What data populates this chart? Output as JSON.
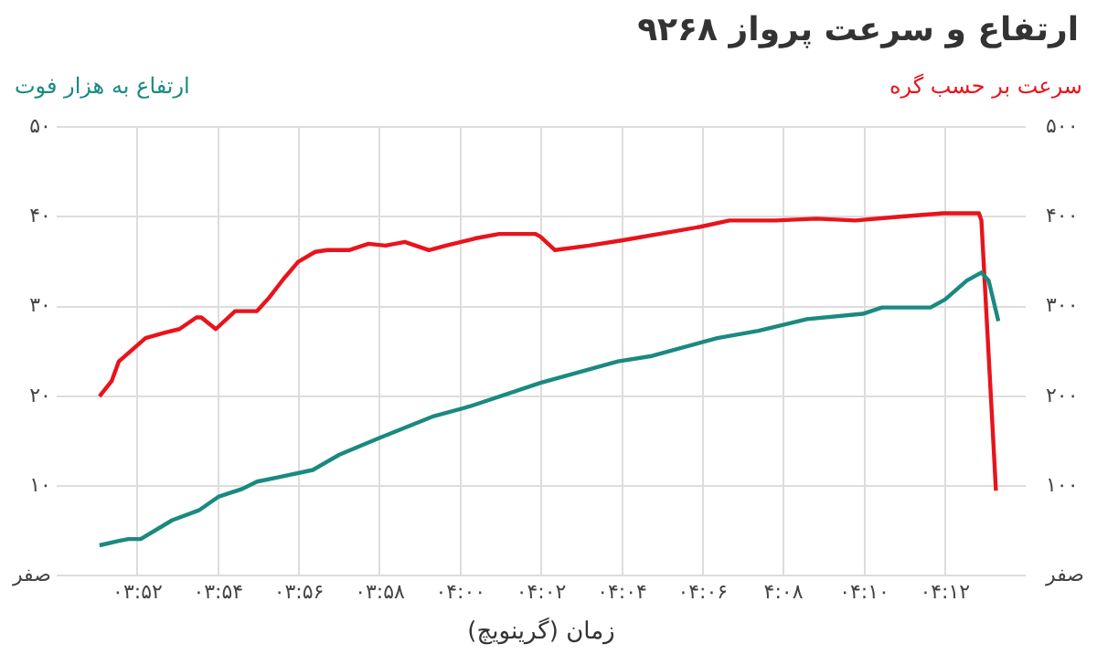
{
  "chart_data": {
    "type": "line",
    "title": "ارتفاع و سرعت پرواز ۹۲۶۸",
    "xlabel": "زمان (گرینویچ)",
    "ylabel": "ارتفاع به هزار فوت",
    "y2label": "سرعت بر حسب گره",
    "xlim": [
      3.8333,
      4.2333
    ],
    "xticks": [
      {
        "value": 3.8667,
        "label": "۰۳:۵۲"
      },
      {
        "value": 3.9,
        "label": "۰۳:۵۴"
      },
      {
        "value": 3.9333,
        "label": "۰۳:۵۶"
      },
      {
        "value": 3.9667,
        "label": "۰۳:۵۸"
      },
      {
        "value": 4,
        "label": "۰۴:۰۰"
      },
      {
        "value": 4.0333,
        "label": "۰۴:۰۲"
      },
      {
        "value": 4.0667,
        "label": "۰۴:۰۴"
      },
      {
        "value": 4.1,
        "label": "۰۴:۰۶"
      },
      {
        "value": 4.1333,
        "label": "۴:۰۸"
      },
      {
        "value": 4.1667,
        "label": "۰۴:۱۰"
      },
      {
        "value": 4.2,
        "label": "۰۴:۱۲"
      }
    ],
    "ylim": [
      0,
      50
    ],
    "yticks": [
      {
        "value": 0,
        "label": "صفر"
      },
      {
        "value": 10,
        "label": "۱۰"
      },
      {
        "value": 20,
        "label": "۲۰"
      },
      {
        "value": 30,
        "label": "۳۰"
      },
      {
        "value": 40,
        "label": "۴۰"
      },
      {
        "value": 50,
        "label": "۵۰"
      }
    ],
    "y2lim": [
      0,
      500
    ],
    "y2ticks": [
      {
        "value": 0,
        "label": "صفر"
      },
      {
        "value": 100,
        "label": "۱۰۰"
      },
      {
        "value": 200,
        "label": "۲۰۰"
      },
      {
        "value": 300,
        "label": "۳۰۰"
      },
      {
        "value": 400,
        "label": "۴۰۰"
      },
      {
        "value": 500,
        "label": "۵۰۰"
      }
    ],
    "grid": true,
    "marker": "none",
    "series": [
      {
        "color": "#1a8a80",
        "x": [
          3.851,
          3.859,
          3.863,
          3.868,
          3.881,
          3.892,
          3.9,
          3.91,
          3.916,
          3.925,
          3.939,
          3.95,
          3.966,
          3.989,
          4.004,
          4.033,
          4.065,
          4.079,
          4.106,
          4.123,
          4.143,
          4.166,
          4.174,
          4.194,
          4.2,
          4.209,
          4.215,
          4.218,
          4.222
        ],
        "values": [
          3.4,
          3.9,
          4.1,
          4.1,
          6.2,
          7.3,
          8.8,
          9.7,
          10.5,
          11,
          11.8,
          13.5,
          15.3,
          17.8,
          18.9,
          21.5,
          23.9,
          24.5,
          26.5,
          27.3,
          28.6,
          29.2,
          29.9,
          29.9,
          30.8,
          32.9,
          33.8,
          32.9,
          28.4
        ]
      },
      {
        "color": "#e8141c",
        "axis": "y2",
        "x": [
          3.851,
          3.856,
          3.859,
          3.87,
          3.878,
          3.884,
          3.891,
          3.893,
          3.899,
          3.907,
          3.916,
          3.921,
          3.927,
          3.933,
          3.94,
          3.945,
          3.954,
          3.962,
          3.969,
          3.977,
          3.987,
          3.994,
          4.006,
          4.016,
          4.031,
          4.033,
          4.039,
          4.053,
          4.067,
          4.082,
          4.099,
          4.111,
          4.13,
          4.147,
          4.163,
          4.18,
          4.199,
          4.214,
          4.215,
          4.221
        ],
        "values": [
          200,
          217,
          239,
          265,
          271,
          275,
          288,
          288,
          275,
          295,
          295,
          310,
          331,
          350,
          361,
          363,
          363,
          370,
          368,
          372,
          363,
          368,
          376,
          381,
          381,
          378,
          363,
          368,
          374,
          381,
          389,
          396,
          396,
          398,
          396,
          400,
          404,
          404,
          396,
          95
        ]
      }
    ]
  }
}
